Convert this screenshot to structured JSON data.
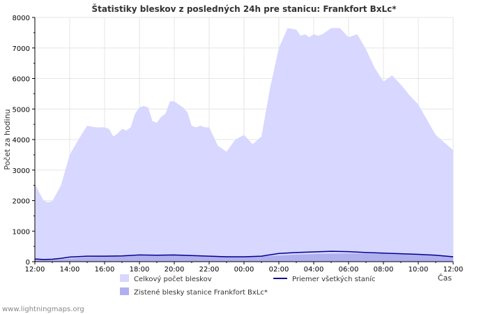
{
  "chart_data": {
    "type": "area",
    "title": "Štatistiky bleskov z posledných 24h pre stanicu: Frankfort BxLc*",
    "xlabel": "Čas",
    "ylabel": "Počet za hodinu",
    "ylim": [
      0,
      8000
    ],
    "yticks": [
      0,
      1000,
      2000,
      3000,
      4000,
      5000,
      6000,
      7000,
      8000
    ],
    "xlim": [
      0,
      24
    ],
    "xticks": [
      0,
      2,
      4,
      6,
      8,
      10,
      12,
      14,
      16,
      18,
      20,
      22,
      24
    ],
    "xtick_labels": [
      "12:00",
      "14:00",
      "16:00",
      "18:00",
      "20:00",
      "22:00",
      "00:00",
      "02:00",
      "04:00",
      "06:00",
      "08:00",
      "10:00",
      "12:00"
    ],
    "grid": true,
    "series": [
      {
        "name": "Celkový počet bleskov",
        "kind": "area",
        "color": "#d7d7ff",
        "x": [
          0,
          0.5,
          0.75,
          1,
          1.5,
          2,
          2.5,
          3,
          3.5,
          4,
          4.25,
          4.5,
          4.75,
          5,
          5.25,
          5.5,
          5.75,
          6,
          6.25,
          6.5,
          6.75,
          7,
          7.25,
          7.5,
          7.75,
          8,
          8.25,
          8.5,
          8.75,
          9,
          9.25,
          9.5,
          9.75,
          10,
          10.5,
          11,
          11.5,
          12,
          12.5,
          13,
          13.5,
          14,
          14.5,
          15,
          15.25,
          15.5,
          15.75,
          16,
          16.25,
          16.5,
          17,
          17.5,
          18,
          18.5,
          19,
          19.5,
          20,
          20.5,
          21,
          21.5,
          22,
          22.5,
          23,
          23.5,
          24
        ],
        "values": [
          2550,
          2000,
          1950,
          1980,
          2500,
          3500,
          4000,
          4450,
          4400,
          4400,
          4350,
          4100,
          4200,
          4350,
          4300,
          4400,
          4850,
          5050,
          5100,
          5050,
          4600,
          4550,
          4750,
          4850,
          5250,
          5250,
          5150,
          5050,
          4900,
          4450,
          4400,
          4450,
          4400,
          4400,
          3800,
          3600,
          4000,
          4150,
          3850,
          4100,
          5700,
          7000,
          7650,
          7600,
          7400,
          7450,
          7350,
          7450,
          7400,
          7450,
          7650,
          7650,
          7350,
          7450,
          6950,
          6350,
          5900,
          6100,
          5800,
          5450,
          5150,
          4650,
          4150,
          3900,
          3650
        ]
      },
      {
        "name": "Zistené blesky stanice Frankfort BxLc*",
        "kind": "area",
        "color": "#b0b0f0",
        "x": [
          0,
          1,
          2,
          3,
          4,
          5,
          6,
          7,
          8,
          9,
          10,
          11,
          12,
          13,
          14,
          15,
          16,
          17,
          18,
          19,
          20,
          21,
          22,
          23,
          24
        ],
        "values": [
          80,
          60,
          100,
          150,
          170,
          180,
          190,
          200,
          210,
          200,
          190,
          180,
          170,
          180,
          200,
          230,
          250,
          260,
          270,
          270,
          260,
          250,
          230,
          210,
          180
        ]
      },
      {
        "name": "Priemer všetkých staníc",
        "kind": "line",
        "color": "#000090",
        "x": [
          0,
          0.5,
          1,
          1.5,
          2,
          3,
          4,
          5,
          6,
          7,
          8,
          9,
          10,
          11,
          12,
          13,
          14,
          15,
          16,
          17,
          18,
          19,
          20,
          21,
          22,
          23,
          24
        ],
        "values": [
          90,
          70,
          80,
          110,
          150,
          180,
          180,
          190,
          220,
          210,
          220,
          200,
          180,
          160,
          160,
          180,
          270,
          300,
          320,
          340,
          330,
          300,
          280,
          260,
          240,
          210,
          160
        ]
      }
    ]
  },
  "legend": {
    "items": [
      {
        "label": "Celkový počet bleskov",
        "swatch": "#d7d7ff"
      },
      {
        "label": "Priemer všetkých staníc",
        "swatch": "#000090"
      },
      {
        "label": "Zistené blesky stanice Frankfort BxLc*",
        "swatch": "#b0b0f0"
      }
    ]
  },
  "footer": "www.lightningmaps.org"
}
